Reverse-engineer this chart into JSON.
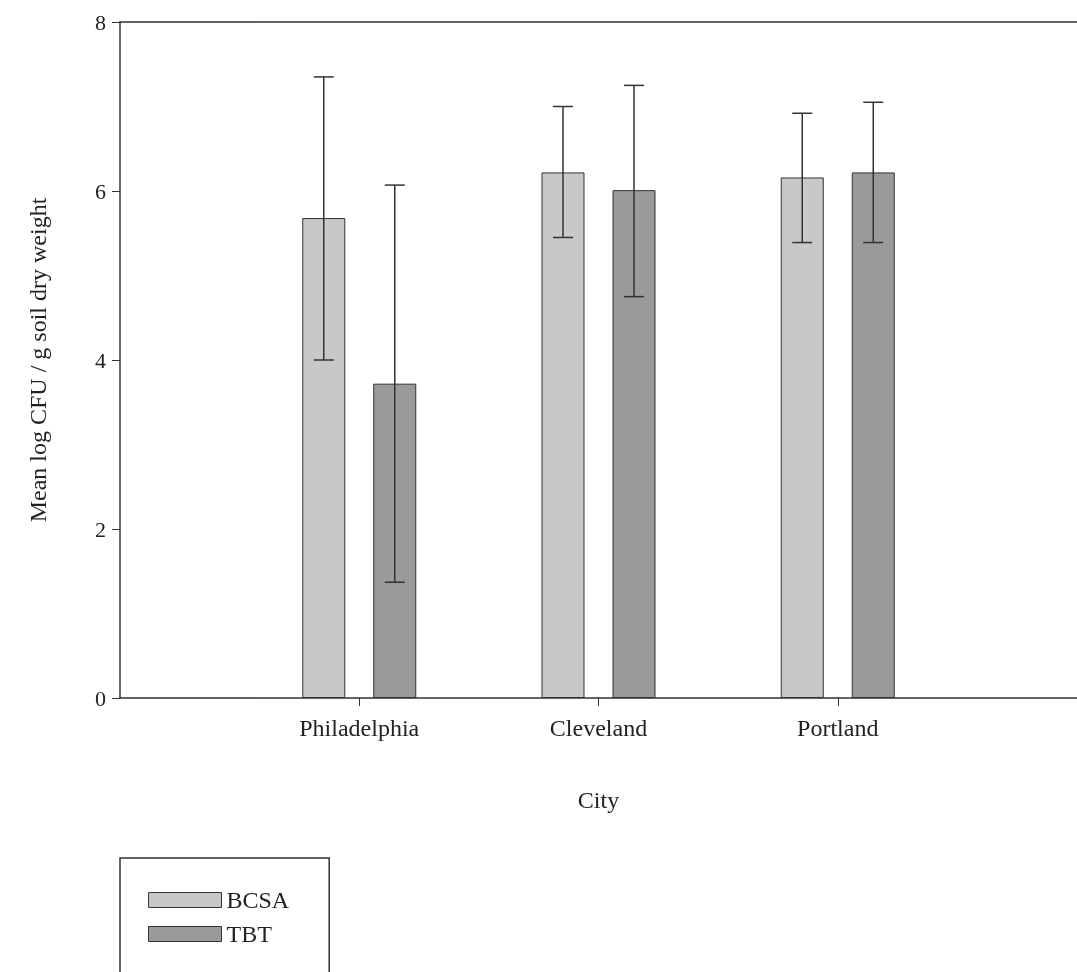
{
  "chart_data": {
    "type": "bar",
    "xlabel": "City",
    "ylabel": "Mean log CFU / g soil dry weight",
    "categories": [
      "Philadelphia",
      "Cleveland",
      "Portland"
    ],
    "series": [
      {
        "name": "BCSA",
        "color": "#c8c8c8",
        "values": [
          5.68,
          6.22,
          6.16
        ],
        "errors": [
          [
            4.0,
            7.35
          ],
          [
            5.45,
            7.0
          ],
          [
            5.39,
            6.92
          ]
        ]
      },
      {
        "name": "TBT",
        "color": "#9a9a9a",
        "values": [
          3.72,
          6.01,
          6.22
        ],
        "errors": [
          [
            1.37,
            6.07
          ],
          [
            4.75,
            7.25
          ],
          [
            5.39,
            7.05
          ]
        ]
      }
    ],
    "ylim": [
      0,
      8
    ],
    "yticks": [
      0,
      2,
      4,
      6,
      8
    ],
    "grid": false,
    "legend": "bottom left"
  }
}
